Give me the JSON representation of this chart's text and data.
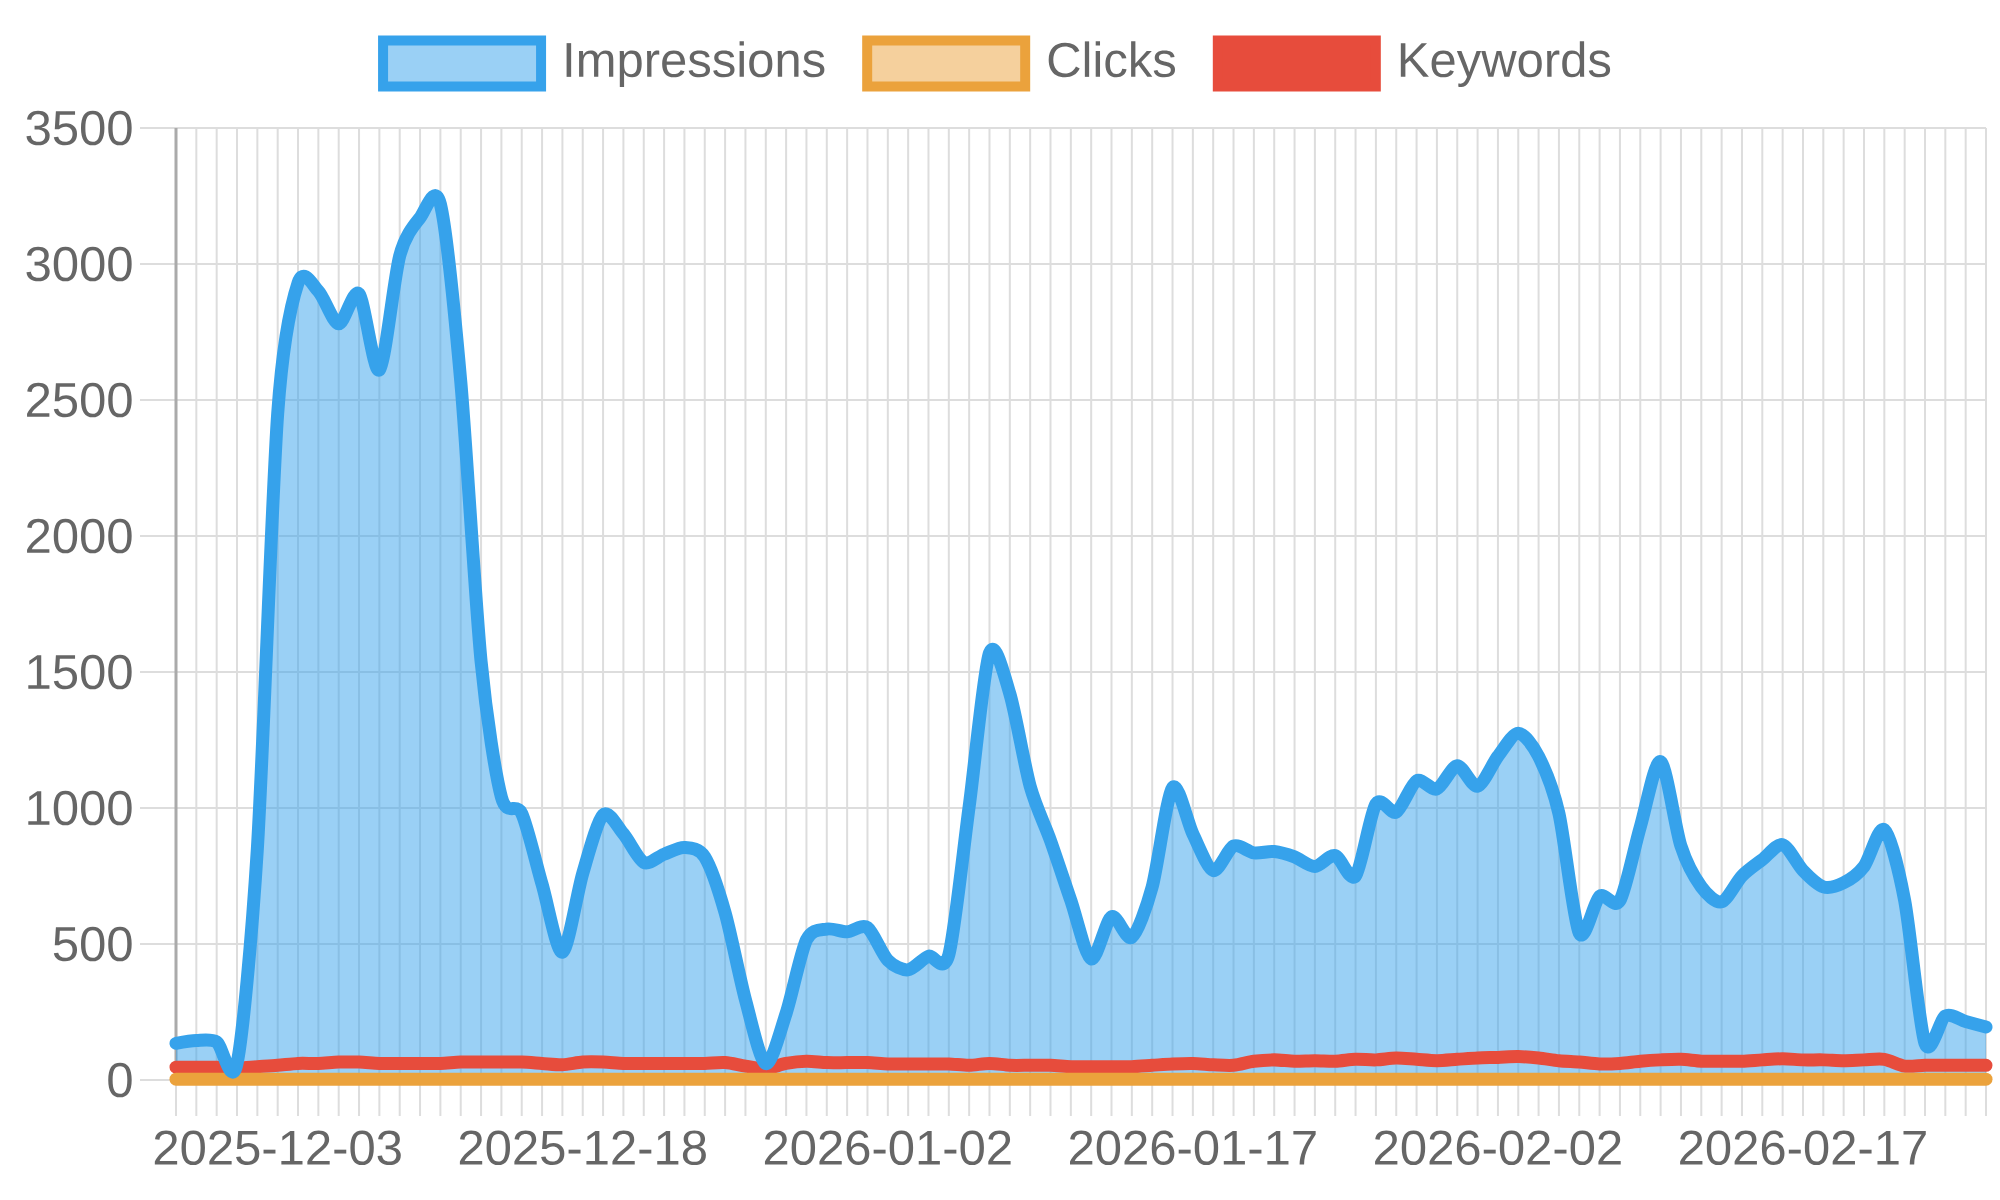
{
  "chart_data": {
    "type": "area",
    "categories": [
      null,
      null,
      null,
      null,
      null,
      "2025-12-03",
      null,
      null,
      null,
      null,
      null,
      null,
      null,
      null,
      null,
      null,
      null,
      null,
      null,
      null,
      "2025-12-18",
      null,
      null,
      null,
      null,
      null,
      null,
      null,
      null,
      null,
      null,
      null,
      null,
      null,
      null,
      "2026-01-02",
      null,
      null,
      null,
      null,
      null,
      null,
      null,
      null,
      null,
      null,
      null,
      null,
      null,
      null,
      "2026-01-17",
      null,
      null,
      null,
      null,
      null,
      null,
      null,
      null,
      null,
      null,
      null,
      null,
      null,
      null,
      "2026-02-02",
      null,
      null,
      null,
      null,
      null,
      null,
      null,
      null,
      null,
      null,
      null,
      null,
      null,
      null,
      "2026-02-17",
      null,
      null,
      null,
      null,
      null,
      null,
      null,
      null,
      null
    ],
    "series": [
      {
        "name": "Impressions",
        "color": "#36a2eb",
        "values": [
          135,
          145,
          140,
          60,
          850,
          2450,
          2930,
          2900,
          2780,
          2890,
          2610,
          3030,
          3170,
          3220,
          2570,
          1540,
          1040,
          980,
          720,
          470,
          760,
          975,
          905,
          800,
          830,
          855,
          820,
          615,
          295,
          60,
          245,
          515,
          555,
          545,
          560,
          440,
          405,
          455,
          460,
          1005,
          1570,
          1420,
          1080,
          880,
          660,
          445,
          600,
          525,
          710,
          1075,
          905,
          770,
          860,
          835,
          840,
          820,
          785,
          825,
          750,
          1015,
          985,
          1100,
          1070,
          1155,
          1080,
          1190,
          1275,
          1190,
          980,
          540,
          675,
          660,
          930,
          1170,
          860,
          710,
          655,
          750,
          810,
          865,
          770,
          710,
          725,
          785,
          920,
          660,
          135,
          235,
          215,
          195
        ]
      },
      {
        "name": "Clicks",
        "color": "#eba23c",
        "values": [
          3,
          3,
          3,
          3,
          3,
          3,
          3,
          3,
          3,
          3,
          3,
          3,
          3,
          3,
          3,
          3,
          3,
          3,
          3,
          3,
          3,
          3,
          3,
          3,
          3,
          3,
          3,
          3,
          3,
          3,
          3,
          3,
          3,
          3,
          3,
          3,
          3,
          3,
          3,
          3,
          3,
          3,
          3,
          3,
          3,
          3,
          3,
          3,
          3,
          3,
          3,
          3,
          3,
          3,
          3,
          3,
          3,
          3,
          3,
          3,
          3,
          3,
          3,
          3,
          3,
          3,
          3,
          3,
          3,
          3,
          3,
          3,
          3,
          3,
          3,
          3,
          3,
          3,
          3,
          3,
          3,
          3,
          3,
          3,
          3,
          3,
          3,
          3,
          3,
          3
        ]
      },
      {
        "name": "Keywords",
        "type": "line",
        "color": "#e74c3c",
        "values": [
          47,
          47,
          47,
          44,
          49,
          54,
          61,
          61,
          66,
          66,
          61,
          61,
          61,
          61,
          66,
          66,
          66,
          66,
          61,
          56,
          66,
          66,
          61,
          61,
          61,
          61,
          61,
          64,
          51,
          42,
          61,
          69,
          64,
          64,
          64,
          59,
          59,
          59,
          59,
          54,
          61,
          54,
          54,
          54,
          49,
          49,
          49,
          49,
          54,
          59,
          61,
          56,
          54,
          69,
          74,
          69,
          71,
          69,
          76,
          74,
          81,
          76,
          71,
          76,
          81,
          83,
          86,
          81,
          71,
          66,
          59,
          61,
          69,
          74,
          76,
          69,
          69,
          69,
          74,
          78,
          74,
          74,
          71,
          74,
          76,
          51,
          54,
          54,
          54,
          54
        ]
      }
    ],
    "ylim": [
      0,
      3500
    ],
    "yticks": [
      0,
      500,
      1000,
      1500,
      2000,
      2500,
      3000,
      3500
    ],
    "grid": true,
    "legend": "top"
  }
}
